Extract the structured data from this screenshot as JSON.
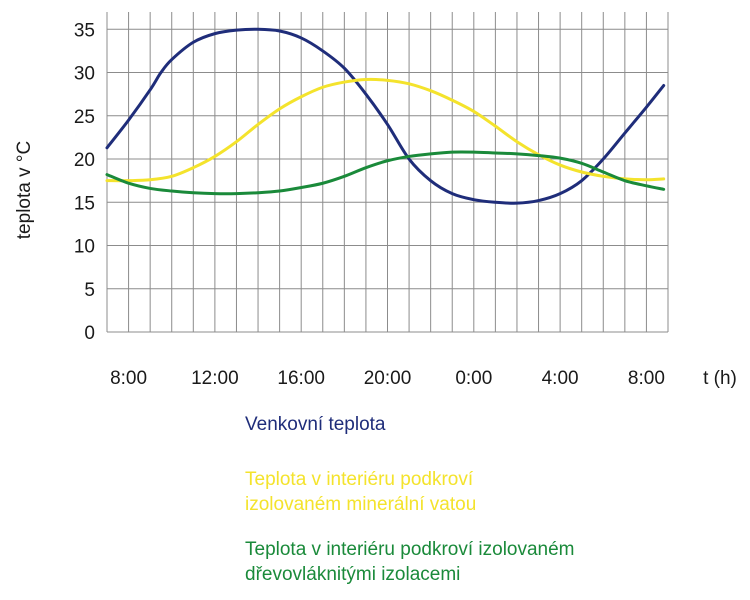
{
  "chart_data": {
    "type": "line",
    "xlabel": "t (h)",
    "ylabel": "teplota v °C",
    "x_tick_labels": [
      "8:00",
      "12:00",
      "16:00",
      "20:00",
      "0:00",
      "4:00",
      "8:00"
    ],
    "x_tick_hours": [
      8,
      12,
      16,
      20,
      24,
      28,
      32
    ],
    "xlim_hours": [
      7,
      33
    ],
    "ylim": [
      0,
      37
    ],
    "y_ticks": [
      0,
      5,
      10,
      15,
      20,
      25,
      30,
      35
    ],
    "grid": true,
    "legend_placement": "below",
    "series": [
      {
        "name_lines": [
          "Venkovní teplota"
        ],
        "color": "#1f2d7a",
        "x_hours": [
          7,
          8,
          9,
          9.5,
          10,
          11,
          12,
          13,
          14,
          15,
          16,
          17,
          18,
          19,
          20,
          21,
          22,
          23,
          24,
          25,
          26,
          27,
          28,
          29,
          30,
          31,
          32,
          32.8
        ],
        "values": [
          21.3,
          24.5,
          28.0,
          30.0,
          31.5,
          33.5,
          34.5,
          34.9,
          35.0,
          34.8,
          34.0,
          32.5,
          30.5,
          27.5,
          24.0,
          20.0,
          17.5,
          16.0,
          15.3,
          15.0,
          14.9,
          15.2,
          16.0,
          17.5,
          20.0,
          23.0,
          26.0,
          28.5
        ]
      },
      {
        "name_lines": [
          "Teplota v interiéru podkroví",
          "izolovaném minerální vatou"
        ],
        "color": "#f4e32c",
        "x_hours": [
          7,
          8,
          9,
          10,
          11,
          12,
          13,
          14,
          15,
          16,
          17,
          18,
          19,
          20,
          21,
          22,
          23,
          24,
          25,
          26,
          27,
          28,
          29,
          30,
          31,
          32,
          32.8
        ],
        "values": [
          17.5,
          17.5,
          17.6,
          18.0,
          19.0,
          20.3,
          22.0,
          24.0,
          25.8,
          27.2,
          28.3,
          28.9,
          29.2,
          29.1,
          28.7,
          27.9,
          26.8,
          25.5,
          23.8,
          22.0,
          20.5,
          19.3,
          18.5,
          18.0,
          17.7,
          17.6,
          17.7
        ]
      },
      {
        "name_lines": [
          "Teplota v interiéru podkroví izolovaném",
          "dřevovláknitými izolacemi"
        ],
        "color": "#1a8a3a",
        "x_hours": [
          7,
          8,
          9,
          10,
          11,
          12,
          13,
          14,
          15,
          16,
          17,
          18,
          19,
          20,
          21,
          22,
          23,
          24,
          25,
          26,
          27,
          28,
          29,
          30,
          31,
          32,
          32.8
        ],
        "values": [
          18.2,
          17.2,
          16.6,
          16.3,
          16.1,
          16.0,
          16.0,
          16.1,
          16.3,
          16.7,
          17.2,
          18.0,
          19.0,
          19.8,
          20.3,
          20.6,
          20.8,
          20.8,
          20.7,
          20.6,
          20.4,
          20.1,
          19.5,
          18.5,
          17.5,
          16.9,
          16.5
        ]
      }
    ]
  }
}
